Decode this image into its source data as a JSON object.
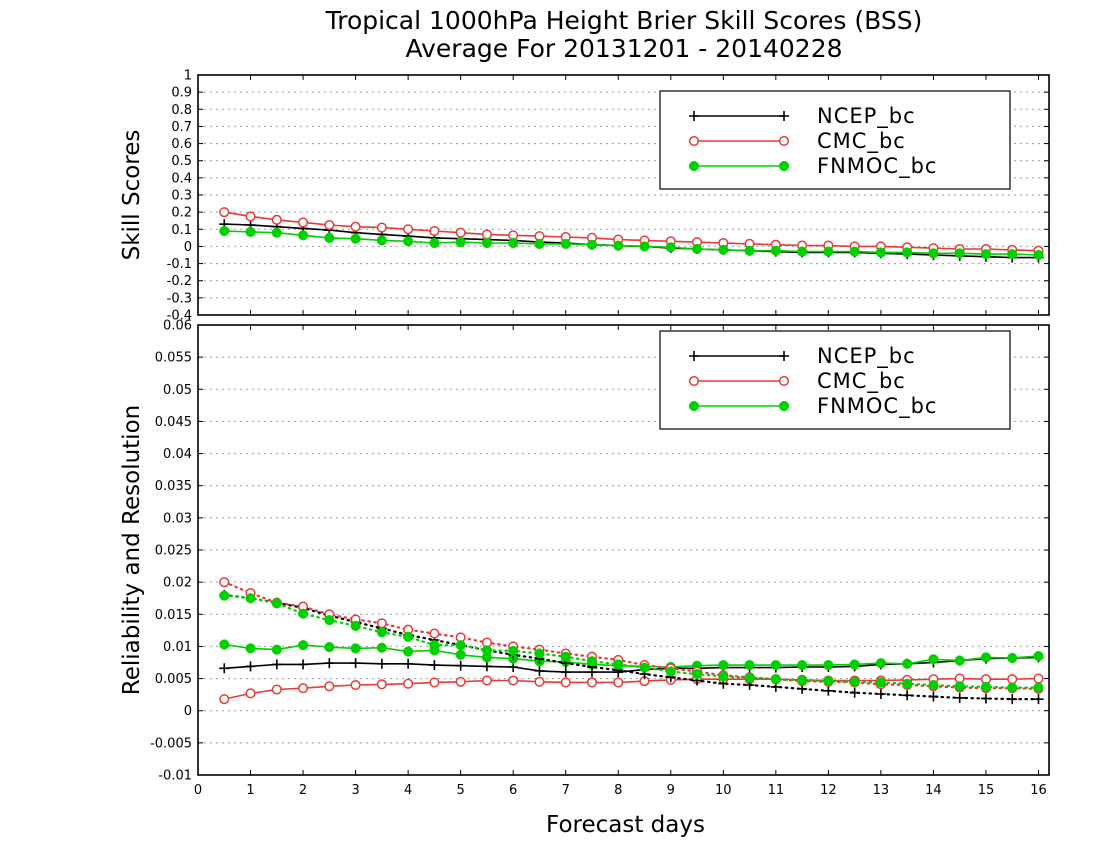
{
  "title_line1": "Tropical 1000hPa Height Brier Skill Scores (BSS)",
  "title_line2": "Average For 20131201 - 20140228",
  "colors": {
    "NCEP_bc": "#000000",
    "CMC_bc": "#e83a3a",
    "FNMOC_bc": "#00d000",
    "grid": "#9a9a9a"
  },
  "chart_data": [
    {
      "type": "line",
      "ylabel": "Skill Scores",
      "xlabel": "",
      "xlim": [
        0,
        16.2
      ],
      "ylim": [
        -0.4,
        1
      ],
      "grid": true,
      "legend": "top-right",
      "x_ticks": [
        0,
        1,
        2,
        3,
        4,
        5,
        6,
        7,
        8,
        9,
        10,
        11,
        12,
        13,
        14,
        15,
        16
      ],
      "x_tick_labels": [
        "",
        "",
        "",
        "",
        "",
        "",
        "",
        "",
        "",
        "",
        "",
        "",
        "",
        "",
        "",
        "",
        ""
      ],
      "y_ticks": [
        -0.4,
        -0.3,
        -0.2,
        -0.1,
        0,
        0.1,
        0.2,
        0.3,
        0.4,
        0.5,
        0.6,
        0.7,
        0.8,
        0.9,
        1
      ],
      "y_tick_labels": [
        "-0.4",
        "-0.3",
        "-0.2",
        "-0.1",
        "0",
        "0.1",
        "0.2",
        "0.3",
        "0.4",
        "0.5",
        "0.6",
        "0.7",
        "0.8",
        "0.9",
        "1"
      ],
      "x": [
        0.5,
        1,
        1.5,
        2,
        2.5,
        3,
        3.5,
        4,
        4.5,
        5,
        5.5,
        6,
        6.5,
        7,
        7.5,
        8,
        8.5,
        9,
        9.5,
        10,
        10.5,
        11,
        11.5,
        12,
        12.5,
        13,
        13.5,
        14,
        14.5,
        15,
        15.5,
        16
      ],
      "series": [
        {
          "name": "NCEP_bc",
          "style": "solid",
          "marker": "plus",
          "values": [
            0.13,
            0.125,
            0.115,
            0.105,
            0.095,
            0.08,
            0.07,
            0.06,
            0.05,
            0.045,
            0.04,
            0.035,
            0.025,
            0.02,
            0.01,
            0.005,
            0.0,
            -0.01,
            -0.015,
            -0.02,
            -0.025,
            -0.03,
            -0.035,
            -0.035,
            -0.035,
            -0.04,
            -0.045,
            -0.05,
            -0.055,
            -0.06,
            -0.065,
            -0.065
          ]
        },
        {
          "name": "CMC_bc",
          "style": "solid",
          "marker": "circle-open",
          "values": [
            0.2,
            0.175,
            0.155,
            0.14,
            0.125,
            0.115,
            0.11,
            0.1,
            0.09,
            0.08,
            0.07,
            0.065,
            0.06,
            0.055,
            0.05,
            0.04,
            0.035,
            0.03,
            0.025,
            0.02,
            0.015,
            0.01,
            0.005,
            0.005,
            0.0,
            0.0,
            -0.005,
            -0.01,
            -0.015,
            -0.015,
            -0.02,
            -0.025
          ]
        },
        {
          "name": "FNMOC_bc",
          "style": "solid",
          "marker": "circle-filled",
          "values": [
            0.09,
            0.085,
            0.08,
            0.065,
            0.05,
            0.045,
            0.035,
            0.03,
            0.02,
            0.025,
            0.02,
            0.02,
            0.015,
            0.015,
            0.01,
            0.005,
            0.0,
            -0.005,
            -0.015,
            -0.02,
            -0.025,
            -0.025,
            -0.03,
            -0.03,
            -0.03,
            -0.035,
            -0.035,
            -0.04,
            -0.04,
            -0.045,
            -0.045,
            -0.05
          ]
        }
      ],
      "legend_entries": [
        "NCEP_bc",
        "CMC_bc",
        "FNMOC_bc"
      ]
    },
    {
      "type": "line",
      "ylabel": "Reliability and Resolution",
      "xlabel": "Forecast days",
      "xlim": [
        0,
        16.2
      ],
      "ylim": [
        -0.01,
        0.06
      ],
      "grid": true,
      "legend": "top-right",
      "x_ticks": [
        0,
        1,
        2,
        3,
        4,
        5,
        6,
        7,
        8,
        9,
        10,
        11,
        12,
        13,
        14,
        15,
        16
      ],
      "x_tick_labels": [
        "0",
        "1",
        "2",
        "3",
        "4",
        "5",
        "6",
        "7",
        "8",
        "9",
        "10",
        "11",
        "12",
        "13",
        "14",
        "15",
        "16"
      ],
      "y_ticks": [
        -0.01,
        -0.005,
        0,
        0.005,
        0.01,
        0.015,
        0.02,
        0.025,
        0.03,
        0.035,
        0.04,
        0.045,
        0.05,
        0.055,
        0.06
      ],
      "y_tick_labels": [
        "-0.01",
        "-0.005",
        "0",
        "0.005",
        "0.01",
        "0.015",
        "0.02",
        "0.025",
        "0.03",
        "0.035",
        "0.04",
        "0.045",
        "0.05",
        "0.055",
        "0.06"
      ],
      "x": [
        0.5,
        1,
        1.5,
        2,
        2.5,
        3,
        3.5,
        4,
        4.5,
        5,
        5.5,
        6,
        6.5,
        7,
        7.5,
        8,
        8.5,
        9,
        9.5,
        10,
        10.5,
        11,
        11.5,
        12,
        12.5,
        13,
        13.5,
        14,
        14.5,
        15,
        15.5,
        16
      ],
      "series": [
        {
          "name": "NCEP_bc",
          "style": "solid",
          "marker": "plus",
          "values": [
            0.0066,
            0.0069,
            0.0072,
            0.0072,
            0.0074,
            0.0074,
            0.0073,
            0.0073,
            0.0071,
            0.007,
            0.0069,
            0.0068,
            0.0062,
            0.006,
            0.006,
            0.006,
            0.0064,
            0.0066,
            0.0066,
            0.0067,
            0.0067,
            0.0067,
            0.0068,
            0.0068,
            0.0069,
            0.0072,
            0.0073,
            0.0075,
            0.0078,
            0.0081,
            0.0082,
            0.0083
          ]
        },
        {
          "name": "CMC_bc",
          "style": "solid",
          "marker": "circle-open",
          "values": [
            0.0018,
            0.0027,
            0.0033,
            0.0035,
            0.0038,
            0.004,
            0.0041,
            0.0042,
            0.0044,
            0.0045,
            0.0047,
            0.0047,
            0.0045,
            0.0044,
            0.0044,
            0.0044,
            0.0046,
            0.0048,
            0.0049,
            0.0049,
            0.0049,
            0.0049,
            0.0048,
            0.0047,
            0.0047,
            0.0047,
            0.0048,
            0.0049,
            0.005,
            0.0049,
            0.0049,
            0.005
          ]
        },
        {
          "name": "FNMOC_bc",
          "style": "solid",
          "marker": "circle-filled",
          "values": [
            0.0103,
            0.0097,
            0.0095,
            0.0102,
            0.0099,
            0.0097,
            0.0098,
            0.0092,
            0.0094,
            0.0087,
            0.0083,
            0.0081,
            0.0077,
            0.0076,
            0.0072,
            0.007,
            0.0069,
            0.0068,
            0.007,
            0.0071,
            0.0071,
            0.0071,
            0.0071,
            0.0071,
            0.0072,
            0.0074,
            0.0073,
            0.008,
            0.0078,
            0.0083,
            0.0082,
            0.0085
          ]
        },
        {
          "name": "NCEP_bc",
          "style": "dotted",
          "marker": "plus",
          "values": [
            0.018,
            0.0175,
            0.0168,
            0.016,
            0.0148,
            0.0138,
            0.0128,
            0.0118,
            0.011,
            0.0102,
            0.0094,
            0.0087,
            0.0081,
            0.0074,
            0.0068,
            0.0063,
            0.0057,
            0.0052,
            0.0047,
            0.0042,
            0.004,
            0.0037,
            0.0034,
            0.0031,
            0.0028,
            0.0026,
            0.0024,
            0.0022,
            0.002,
            0.0019,
            0.0018,
            0.0018
          ]
        },
        {
          "name": "CMC_bc",
          "style": "dotted",
          "marker": "circle-open",
          "values": [
            0.02,
            0.0183,
            0.0168,
            0.0162,
            0.015,
            0.0142,
            0.0136,
            0.0126,
            0.012,
            0.0114,
            0.0106,
            0.01,
            0.0095,
            0.0089,
            0.0084,
            0.0079,
            0.0071,
            0.0066,
            0.0061,
            0.0055,
            0.0052,
            0.0049,
            0.0046,
            0.0045,
            0.0044,
            0.0041,
            0.004,
            0.0038,
            0.0036,
            0.0035,
            0.0035,
            0.0034
          ]
        },
        {
          "name": "FNMOC_bc",
          "style": "dotted",
          "marker": "circle-filled",
          "values": [
            0.0179,
            0.0175,
            0.0167,
            0.0151,
            0.0141,
            0.0132,
            0.0122,
            0.0115,
            0.0102,
            0.0102,
            0.0094,
            0.0093,
            0.0089,
            0.0084,
            0.0077,
            0.0072,
            0.0067,
            0.0061,
            0.0057,
            0.0053,
            0.0051,
            0.0049,
            0.0047,
            0.0046,
            0.0045,
            0.0044,
            0.0042,
            0.004,
            0.0038,
            0.0037,
            0.0036,
            0.0036
          ]
        }
      ],
      "legend_entries": [
        "NCEP_bc",
        "CMC_bc",
        "FNMOC_bc"
      ]
    }
  ]
}
